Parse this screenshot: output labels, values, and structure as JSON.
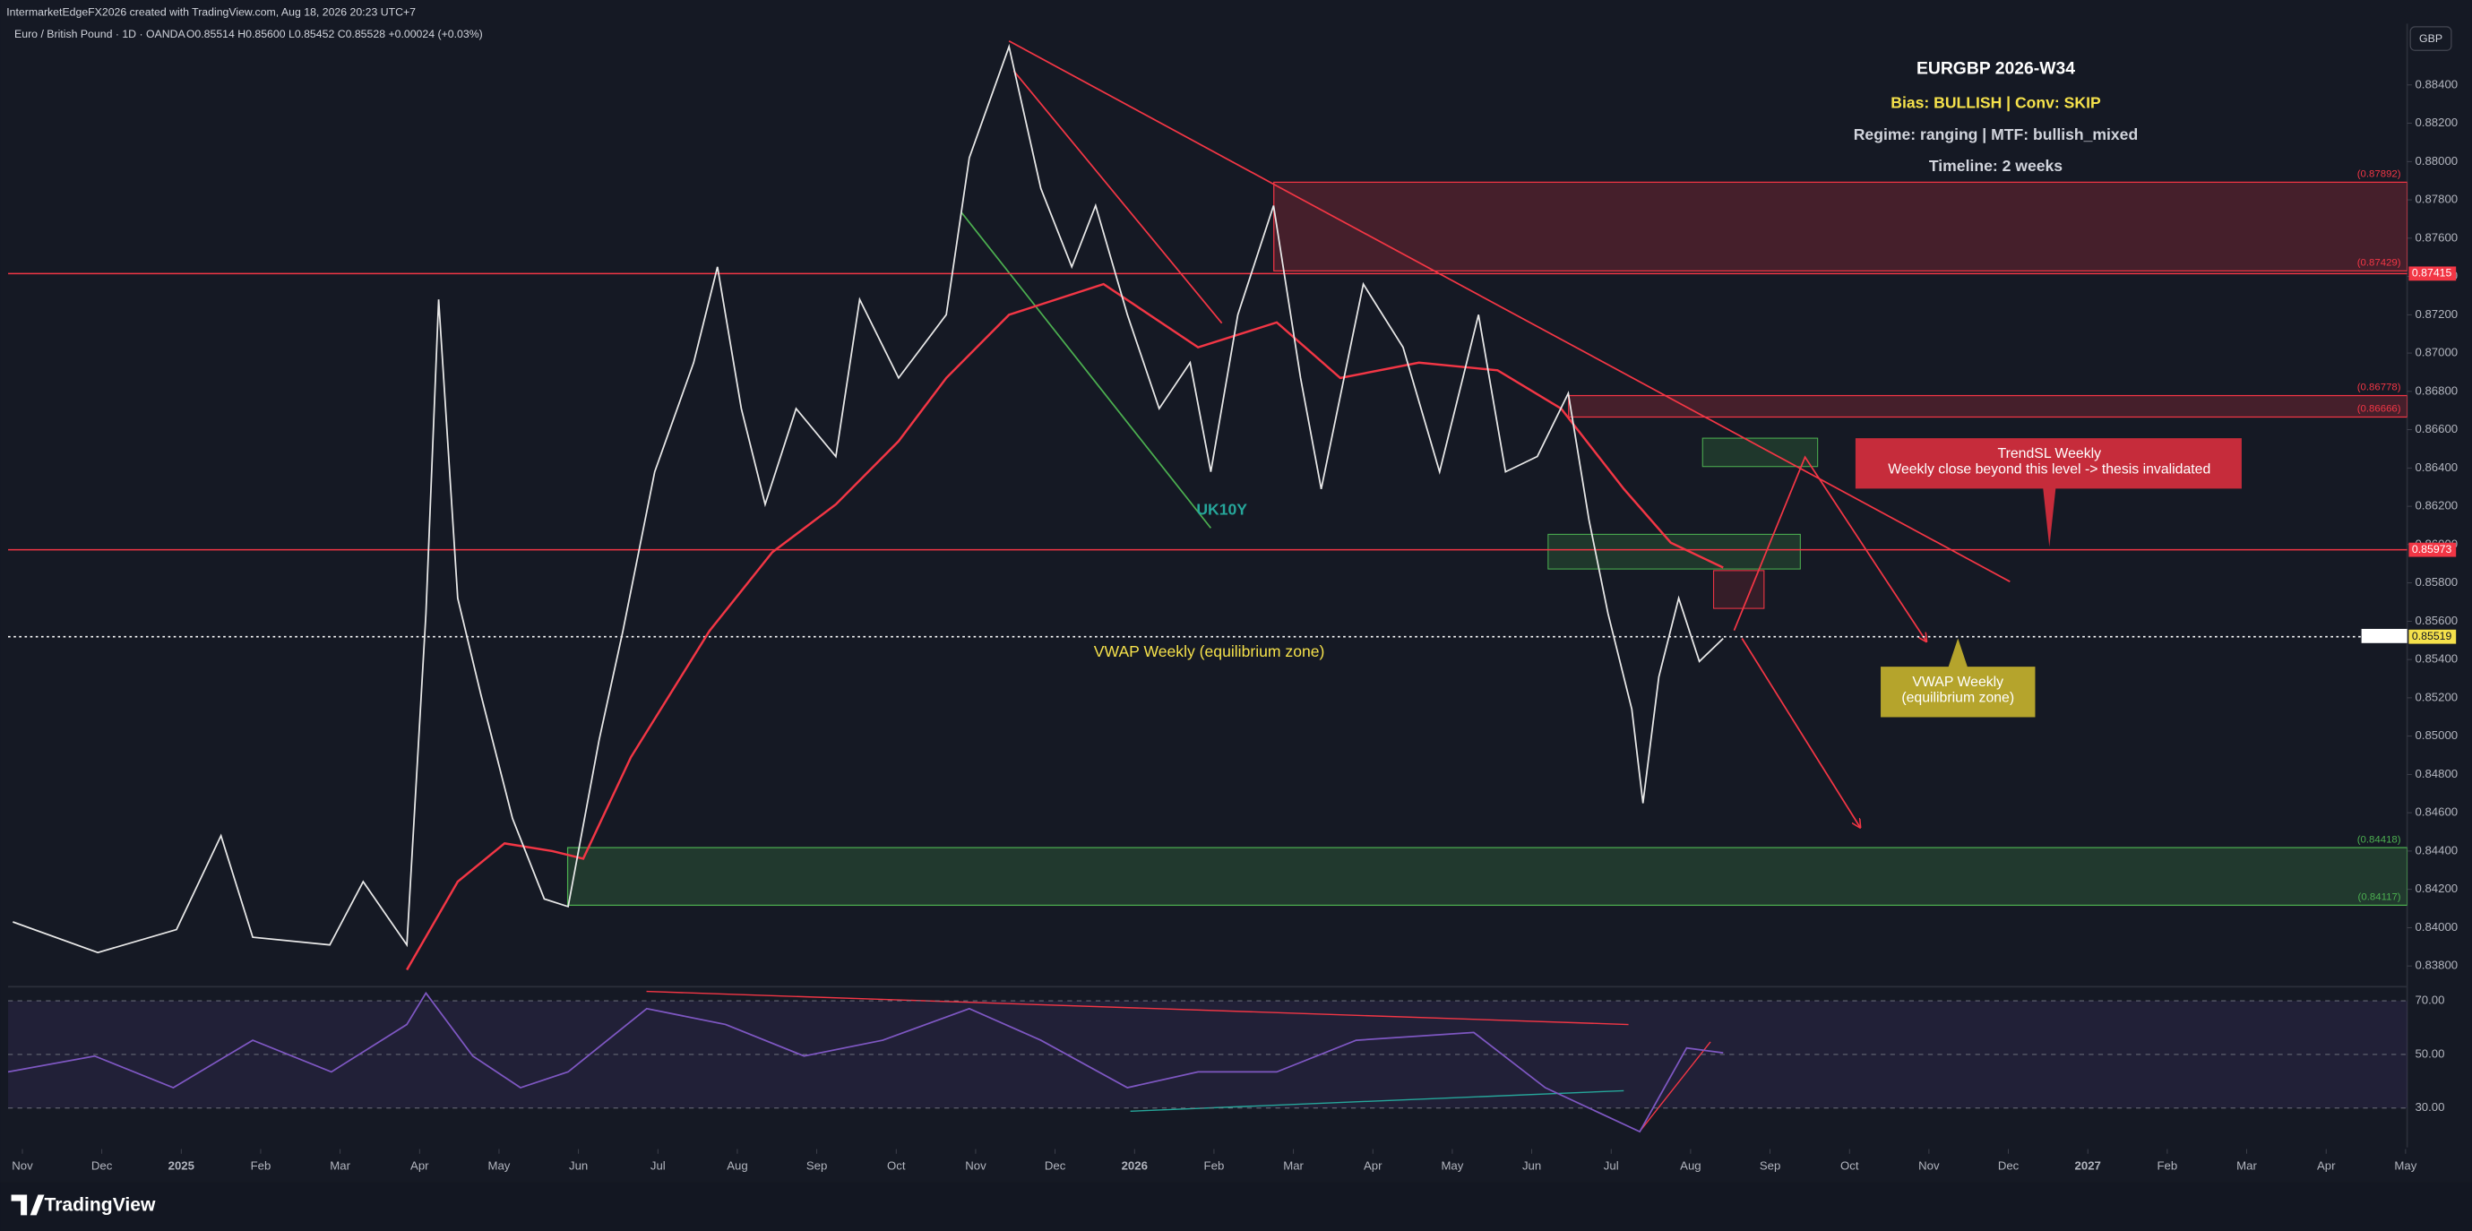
{
  "header": {
    "watermark": "IntermarketEdgeFX2026 created with TradingView.com, Aug 18, 2026 20:23 UTC+7",
    "symbol": "Euro / British Pound · 1D · OANDA",
    "ohlc": "O0.85514 H0.85600 L0.85452 C0.85528 +0.00024 (+0.03%)",
    "currency": "GBP"
  },
  "info_box": {
    "title": "EURGBP 2026-W34",
    "bias": "Bias: BULLISH | Conv: SKIP",
    "regime": "Regime: ranging | MTF: bullish_mixed",
    "timeline": "Timeline: 2 weeks"
  },
  "annotations": {
    "uk10y": "UK10Y",
    "vwap": "VWAP Weekly (equilibrium zone)",
    "vwap_callout": [
      "VWAP Weekly",
      " (equilibrium zone)"
    ],
    "trendsl": [
      "TrendSL Weekly",
      "Weekly close beyond this level -> thesis invalidated"
    ]
  },
  "footer": {
    "brand": "TradingView"
  },
  "chart_data": {
    "type": "line",
    "color": "#e8e8e8",
    "xlim": [
      -0.18,
      30.02
    ],
    "xticks": [
      {
        "value": 0,
        "label": "Nov"
      },
      {
        "value": 1,
        "label": "Dec"
      },
      {
        "value": 2,
        "label": "2025"
      },
      {
        "value": 3,
        "label": "Feb"
      },
      {
        "value": 4,
        "label": "Mar"
      },
      {
        "value": 5,
        "label": "Apr"
      },
      {
        "value": 6,
        "label": "May"
      },
      {
        "value": 7,
        "label": "Jun"
      },
      {
        "value": 8,
        "label": "Jul"
      },
      {
        "value": 9,
        "label": "Aug"
      },
      {
        "value": 10,
        "label": "Sep"
      },
      {
        "value": 11,
        "label": "Oct"
      },
      {
        "value": 12,
        "label": "Nov"
      },
      {
        "value": 13,
        "label": "Dec"
      },
      {
        "value": 14,
        "label": "2026"
      },
      {
        "value": 15,
        "label": "Feb"
      },
      {
        "value": 16,
        "label": "Mar"
      },
      {
        "value": 17,
        "label": "Apr"
      },
      {
        "value": 18,
        "label": "May"
      },
      {
        "value": 19,
        "label": "Jun"
      },
      {
        "value": 20,
        "label": "Jul"
      },
      {
        "value": 21,
        "label": "Aug"
      },
      {
        "value": 22,
        "label": "Sep"
      },
      {
        "value": 23,
        "label": "Oct"
      },
      {
        "value": 24,
        "label": "Nov"
      },
      {
        "value": 25,
        "label": "Dec"
      },
      {
        "value": 26,
        "label": "2027"
      },
      {
        "value": 27,
        "label": "Feb"
      },
      {
        "value": 28,
        "label": "Mar"
      },
      {
        "value": 29,
        "label": "Apr"
      },
      {
        "value": 30,
        "label": "May"
      }
    ],
    "ylim": [
      0.837,
      0.8872
    ],
    "yticks": [
      {
        "value": 0.838,
        "label": "0.83800"
      },
      {
        "value": 0.84,
        "label": "0.84000"
      },
      {
        "value": 0.842,
        "label": "0.84200"
      },
      {
        "value": 0.844,
        "label": "0.84400"
      },
      {
        "value": 0.846,
        "label": "0.84600"
      },
      {
        "value": 0.848,
        "label": "0.84800"
      },
      {
        "value": 0.85,
        "label": "0.85000"
      },
      {
        "value": 0.852,
        "label": "0.85200"
      },
      {
        "value": 0.854,
        "label": "0.85400"
      },
      {
        "value": 0.856,
        "label": "0.85600"
      },
      {
        "value": 0.858,
        "label": "0.85800"
      },
      {
        "value": 0.86,
        "label": "0.86000"
      },
      {
        "value": 0.862,
        "label": "0.86200"
      },
      {
        "value": 0.864,
        "label": "0.86400"
      },
      {
        "value": 0.866,
        "label": "0.86600"
      },
      {
        "value": 0.868,
        "label": "0.86800"
      },
      {
        "value": 0.87,
        "label": "0.87000"
      },
      {
        "value": 0.872,
        "label": "0.87200"
      },
      {
        "value": 0.874,
        "label": "0.87400"
      },
      {
        "value": 0.876,
        "label": "0.87600"
      },
      {
        "value": 0.878,
        "label": "0.87800"
      },
      {
        "value": 0.88,
        "label": "0.88000"
      },
      {
        "value": 0.882,
        "label": "0.88200"
      },
      {
        "value": 0.884,
        "label": "0.88400"
      }
    ],
    "grid": false,
    "x": [
      -0.12,
      0.95,
      1.94,
      2.5,
      2.9,
      3.87,
      4.29,
      4.84,
      5.08,
      5.24,
      5.48,
      5.77,
      6.17,
      6.57,
      6.87,
      7.26,
      7.56,
      7.96,
      8.45,
      8.75,
      9.05,
      9.35,
      9.74,
      10.24,
      10.54,
      11.03,
      11.63,
      11.92,
      12.42,
      12.82,
      13.21,
      13.51,
      13.91,
      14.31,
      14.7,
      14.96,
      15.3,
      15.75,
      16.09,
      16.35,
      16.88,
      17.38,
      17.84,
      18.33,
      18.67,
      19.07,
      19.46,
      19.72,
      19.96,
      20.26,
      20.4,
      20.6,
      20.85,
      21.11,
      21.41
    ],
    "values": [
      0.8403,
      0.8387,
      0.8399,
      0.8448,
      0.8395,
      0.8391,
      0.8424,
      0.8391,
      0.8564,
      0.8728,
      0.8572,
      0.8522,
      0.8457,
      0.8415,
      0.8411,
      0.8498,
      0.8555,
      0.8638,
      0.8695,
      0.8745,
      0.8671,
      0.8621,
      0.8671,
      0.8646,
      0.8728,
      0.8687,
      0.872,
      0.8802,
      0.886,
      0.8786,
      0.8745,
      0.8777,
      0.872,
      0.8671,
      0.8695,
      0.8638,
      0.872,
      0.8777,
      0.8687,
      0.8629,
      0.8736,
      0.8703,
      0.8638,
      0.872,
      0.8638,
      0.8646,
      0.8679,
      0.8613,
      0.8564,
      0.8514,
      0.8465,
      0.8531,
      0.8572,
      0.8539,
      0.8551
    ],
    "ma": {
      "color": "#f23645",
      "x": [
        4.84,
        5.48,
        6.07,
        6.67,
        7.06,
        7.66,
        8.65,
        9.44,
        10.24,
        11.03,
        11.63,
        12.42,
        13.61,
        14.8,
        15.79,
        16.59,
        17.58,
        18.57,
        19.37,
        20.16,
        20.75,
        21.41
      ],
      "values": [
        0.8378,
        0.8424,
        0.8444,
        0.844,
        0.8436,
        0.8489,
        0.8555,
        0.8596,
        0.8621,
        0.8654,
        0.8687,
        0.872,
        0.8736,
        0.8703,
        0.8716,
        0.8687,
        0.8695,
        0.8691,
        0.8671,
        0.8629,
        0.8601,
        0.8588
      ]
    },
    "levels": [
      {
        "value": 0.87415,
        "label": "0.87415",
        "color": "#f23645",
        "style": "solid"
      },
      {
        "value": 0.85973,
        "label": "0.85973",
        "color": "#f23645",
        "style": "solid"
      },
      {
        "value": 0.85519,
        "label": "0.85519",
        "color": "#f5e14b",
        "style": "dotted"
      }
    ],
    "zones": [
      {
        "top": {
          "value": 0.87892,
          "label": "(0.87892)"
        },
        "bottom": {
          "value": 0.87429,
          "label": "(0.87429)"
        },
        "color": "#f23645"
      },
      {
        "top": {
          "value": 0.86778,
          "label": "(0.86778)"
        },
        "bottom": {
          "value": 0.86666,
          "label": "(0.86666)"
        },
        "color": "#f23645"
      },
      {
        "top": {
          "value": 0.84418,
          "label": "(0.84418)"
        },
        "bottom": {
          "value": 0.84117,
          "label": "(0.84117)"
        },
        "color": "#4caf50"
      }
    ],
    "rsi": {
      "color": "#7e57c2",
      "ylim": [
        15.3,
        74.1
      ],
      "yticks": [
        {
          "value": 70,
          "label": "70.00"
        },
        {
          "value": 50,
          "label": "50.00"
        },
        {
          "value": 30,
          "label": "30.00"
        }
      ],
      "x": [
        -0.18,
        0.91,
        1.9,
        2.9,
        3.89,
        4.84,
        5.08,
        5.67,
        6.27,
        6.87,
        7.86,
        8.85,
        9.84,
        10.83,
        11.92,
        12.82,
        13.91,
        14.8,
        15.79,
        16.79,
        18.27,
        19.17,
        20.36,
        20.95,
        21.41
      ],
      "values": [
        43.5,
        49.4,
        37.6,
        55.3,
        43.5,
        61.2,
        72.9,
        49.4,
        37.6,
        43.5,
        67.1,
        61.2,
        49.4,
        55.3,
        67.1,
        55.3,
        37.6,
        43.5,
        43.5,
        55.3,
        58.2,
        37.6,
        21.2,
        52.4,
        50.6
      ]
    }
  }
}
